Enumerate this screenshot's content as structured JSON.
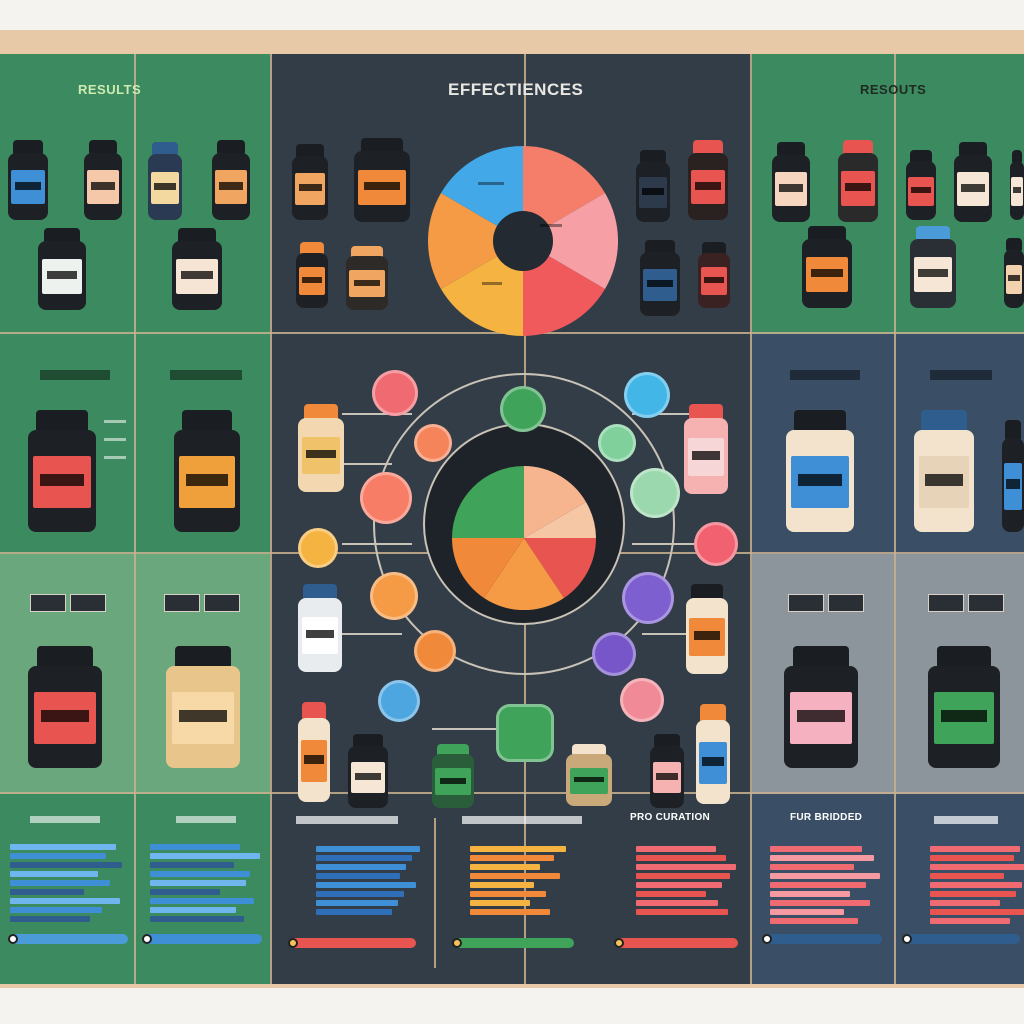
{
  "headers": {
    "left": "RESULTS",
    "center": "EFFECTIENCES",
    "right": "RESOUTS"
  },
  "bottom_titles": [
    "PRO CURATION",
    "FUR BRIDDED"
  ],
  "colors": {
    "green": "#3c8a5f",
    "dark": "#323d47",
    "slate": "#3a4f66",
    "orange": "#f0a03a",
    "red": "#e8544f",
    "pink": "#f6a6a6",
    "blue": "#3f8fd6"
  },
  "icons": [
    "supplement-jar-icon",
    "pie-chart-icon",
    "bubble-node-icon",
    "bar-chart-icon",
    "slider-icon"
  ]
}
